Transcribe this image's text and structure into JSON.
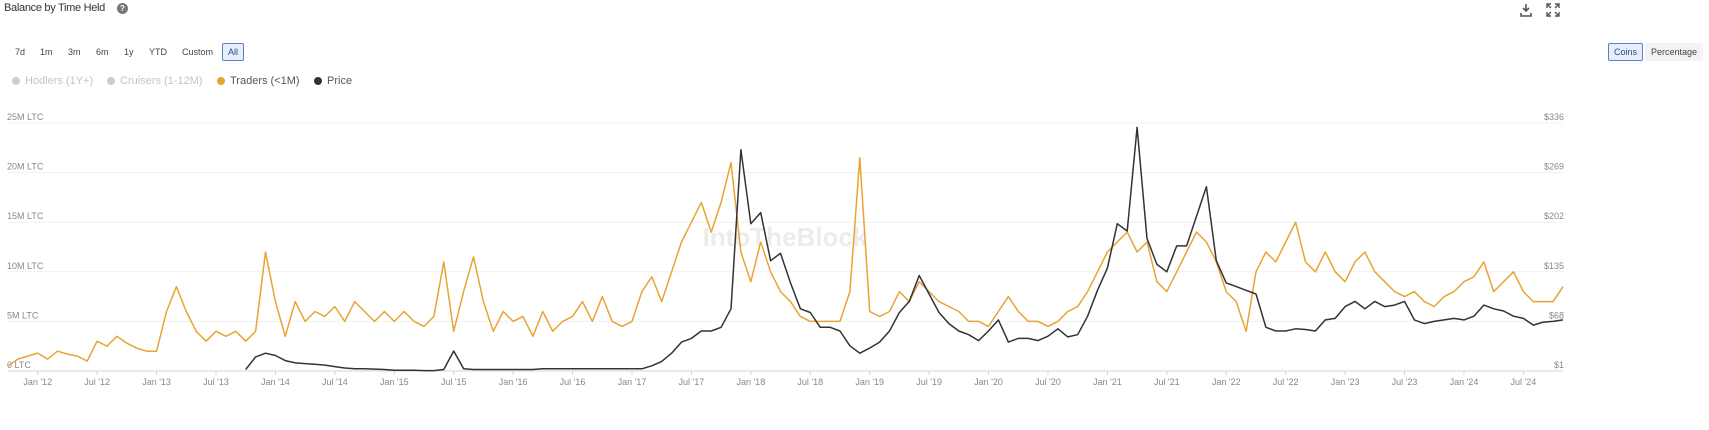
{
  "header": {
    "title": "Balance by Time Held",
    "help": "?"
  },
  "range_buttons": [
    "7d",
    "1m",
    "3m",
    "6m",
    "1y",
    "YTD",
    "Custom",
    "All"
  ],
  "active_range": "All",
  "unit_buttons": [
    "Coins",
    "Percentage"
  ],
  "active_unit": "Coins",
  "watermark": "IntoTheBlock",
  "chart_data": {
    "type": "line",
    "legend_hidden": [
      {
        "name": "Hodlers (1Y+)",
        "color": "#cccccc"
      },
      {
        "name": "Cruisers (1-12M)",
        "color": "#cccccc"
      }
    ],
    "x": [
      "2011-10",
      "2011-11",
      "2011-12",
      "2012-01",
      "2012-02",
      "2012-03",
      "2012-04",
      "2012-05",
      "2012-06",
      "2012-07",
      "2012-08",
      "2012-09",
      "2012-10",
      "2012-11",
      "2012-12",
      "2013-01",
      "2013-02",
      "2013-03",
      "2013-04",
      "2013-05",
      "2013-06",
      "2013-07",
      "2013-08",
      "2013-09",
      "2013-10",
      "2013-11",
      "2013-12",
      "2014-01",
      "2014-02",
      "2014-03",
      "2014-04",
      "2014-05",
      "2014-06",
      "2014-07",
      "2014-08",
      "2014-09",
      "2014-10",
      "2014-11",
      "2014-12",
      "2015-01",
      "2015-02",
      "2015-03",
      "2015-04",
      "2015-05",
      "2015-06",
      "2015-07",
      "2015-08",
      "2015-09",
      "2015-10",
      "2015-11",
      "2015-12",
      "2016-01",
      "2016-02",
      "2016-03",
      "2016-04",
      "2016-05",
      "2016-06",
      "2016-07",
      "2016-08",
      "2016-09",
      "2016-10",
      "2016-11",
      "2016-12",
      "2017-01",
      "2017-02",
      "2017-03",
      "2017-04",
      "2017-05",
      "2017-06",
      "2017-07",
      "2017-08",
      "2017-09",
      "2017-10",
      "2017-11",
      "2017-12",
      "2018-01",
      "2018-02",
      "2018-03",
      "2018-04",
      "2018-05",
      "2018-06",
      "2018-07",
      "2018-08",
      "2018-09",
      "2018-10",
      "2018-11",
      "2018-12",
      "2019-01",
      "2019-02",
      "2019-03",
      "2019-04",
      "2019-05",
      "2019-06",
      "2019-07",
      "2019-08",
      "2019-09",
      "2019-10",
      "2019-11",
      "2019-12",
      "2020-01",
      "2020-02",
      "2020-03",
      "2020-04",
      "2020-05",
      "2020-06",
      "2020-07",
      "2020-08",
      "2020-09",
      "2020-10",
      "2020-11",
      "2020-12",
      "2021-01",
      "2021-02",
      "2021-03",
      "2021-04",
      "2021-05",
      "2021-06",
      "2021-07",
      "2021-08",
      "2021-09",
      "2021-10",
      "2021-11",
      "2021-12",
      "2022-01",
      "2022-02",
      "2022-03",
      "2022-04",
      "2022-05",
      "2022-06",
      "2022-07",
      "2022-08",
      "2022-09",
      "2022-10",
      "2022-11",
      "2022-12",
      "2023-01",
      "2023-02",
      "2023-03",
      "2023-04",
      "2023-05",
      "2023-06",
      "2023-07",
      "2023-08",
      "2023-09",
      "2023-10",
      "2023-11",
      "2023-12",
      "2024-01",
      "2024-02",
      "2024-03",
      "2024-04",
      "2024-05",
      "2024-06",
      "2024-07",
      "2024-08",
      "2024-09",
      "2024-10",
      "2024-11"
    ],
    "series": [
      {
        "name": "Traders (<1M)",
        "color": "#e8a433",
        "axis": "y",
        "values": [
          500000,
          1200000,
          1500000,
          1800000,
          1200000,
          2000000,
          1700000,
          1500000,
          1000000,
          3000000,
          2500000,
          3500000,
          2800000,
          2300000,
          2000000,
          2000000,
          6000000,
          8500000,
          6000000,
          4000000,
          3000000,
          4000000,
          3500000,
          4000000,
          3000000,
          4000000,
          12000000,
          7000000,
          3500000,
          7000000,
          5000000,
          6000000,
          5500000,
          6500000,
          5000000,
          7000000,
          6000000,
          5000000,
          6000000,
          5000000,
          6000000,
          5000000,
          4500000,
          5500000,
          11000000,
          4000000,
          8000000,
          11500000,
          7000000,
          4000000,
          6000000,
          5000000,
          5500000,
          3500000,
          6000000,
          4000000,
          5000000,
          5500000,
          7000000,
          5000000,
          7500000,
          5000000,
          4500000,
          5000000,
          8000000,
          9500000,
          7000000,
          10000000,
          13000000,
          15000000,
          17000000,
          14000000,
          17000000,
          21000000,
          12000000,
          9000000,
          13000000,
          10000000,
          8000000,
          7000000,
          5500000,
          5000000,
          5000000,
          5000000,
          5000000,
          8000000,
          21500000,
          6000000,
          5500000,
          6000000,
          8000000,
          7000000,
          9000000,
          8000000,
          7000000,
          6500000,
          6000000,
          5000000,
          5000000,
          4500000,
          6000000,
          7500000,
          6000000,
          5000000,
          5000000,
          4500000,
          5000000,
          6000000,
          6500000,
          8000000,
          10000000,
          12000000,
          13000000,
          14000000,
          12000000,
          13000000,
          9000000,
          8000000,
          10000000,
          12000000,
          14000000,
          13000000,
          11000000,
          8000000,
          7000000,
          4000000,
          10000000,
          12000000,
          11000000,
          13000000,
          15000000,
          11000000,
          10000000,
          12000000,
          10000000,
          9000000,
          11000000,
          12000000,
          10000000,
          9000000,
          8000000,
          7500000,
          8000000,
          7000000,
          6500000,
          7500000,
          8000000,
          9000000,
          9500000,
          11000000,
          8000000,
          9000000,
          10000000,
          8000000,
          7000000,
          7000000,
          7000000,
          8500000
        ]
      },
      {
        "name": "Price",
        "color": "#333333",
        "axis": "y2",
        "values": [
          null,
          null,
          null,
          null,
          null,
          null,
          null,
          null,
          null,
          null,
          null,
          null,
          null,
          null,
          null,
          null,
          null,
          null,
          null,
          null,
          null,
          null,
          null,
          null,
          3,
          20,
          25,
          22,
          15,
          12,
          11,
          10,
          9,
          7,
          5,
          4,
          4,
          3.5,
          3,
          2,
          2,
          2,
          1.5,
          1.5,
          3,
          28,
          4,
          3,
          3,
          3,
          3,
          3,
          3,
          3,
          4,
          4,
          4,
          4,
          4,
          4,
          4,
          4,
          4,
          4,
          4,
          8,
          14,
          25,
          40,
          45,
          55,
          55,
          60,
          85,
          300,
          200,
          215,
          150,
          160,
          120,
          85,
          80,
          60,
          60,
          55,
          35,
          25,
          32,
          40,
          55,
          80,
          95,
          130,
          105,
          80,
          65,
          55,
          50,
          42,
          55,
          70,
          40,
          45,
          45,
          42,
          48,
          58,
          47,
          50,
          75,
          110,
          140,
          200,
          190,
          330,
          180,
          145,
          135,
          170,
          170,
          210,
          250,
          150,
          120,
          115,
          110,
          105,
          60,
          55,
          55,
          58,
          57,
          55,
          70,
          72,
          88,
          95,
          85,
          95,
          88,
          90,
          95,
          70,
          65,
          68,
          70,
          72,
          70,
          75,
          90,
          85,
          82,
          75,
          72,
          63,
          67,
          68,
          70
        ]
      }
    ],
    "xlim": [
      "2011-10",
      "2024-11"
    ],
    "xticks": [
      {
        "value": "2012-01",
        "label": "Jan '12"
      },
      {
        "value": "2012-07",
        "label": "Jul '12"
      },
      {
        "value": "2013-01",
        "label": "Jan '13"
      },
      {
        "value": "2013-07",
        "label": "Jul '13"
      },
      {
        "value": "2014-01",
        "label": "Jan '14"
      },
      {
        "value": "2014-07",
        "label": "Jul '14"
      },
      {
        "value": "2015-01",
        "label": "Jan '15"
      },
      {
        "value": "2015-07",
        "label": "Jul '15"
      },
      {
        "value": "2016-01",
        "label": "Jan '16"
      },
      {
        "value": "2016-07",
        "label": "Jul '16"
      },
      {
        "value": "2017-01",
        "label": "Jan '17"
      },
      {
        "value": "2017-07",
        "label": "Jul '17"
      },
      {
        "value": "2018-01",
        "label": "Jan '18"
      },
      {
        "value": "2018-07",
        "label": "Jul '18"
      },
      {
        "value": "2019-01",
        "label": "Jan '19"
      },
      {
        "value": "2019-07",
        "label": "Jul '19"
      },
      {
        "value": "2020-01",
        "label": "Jan '20"
      },
      {
        "value": "2020-07",
        "label": "Jul '20"
      },
      {
        "value": "2021-01",
        "label": "Jan '21"
      },
      {
        "value": "2021-07",
        "label": "Jul '21"
      },
      {
        "value": "2022-01",
        "label": "Jan '22"
      },
      {
        "value": "2022-07",
        "label": "Jul '22"
      },
      {
        "value": "2023-01",
        "label": "Jan '23"
      },
      {
        "value": "2023-07",
        "label": "Jul '23"
      },
      {
        "value": "2024-01",
        "label": "Jan '24"
      },
      {
        "value": "2024-07",
        "label": "Jul '24"
      }
    ],
    "ylim": [
      0,
      25000000
    ],
    "yticks": [
      {
        "value": 0,
        "label": "0 LTC"
      },
      {
        "value": 5000000,
        "label": "5M LTC"
      },
      {
        "value": 10000000,
        "label": "10M LTC"
      },
      {
        "value": 15000000,
        "label": "15M LTC"
      },
      {
        "value": 20000000,
        "label": "20M LTC"
      },
      {
        "value": 25000000,
        "label": "25M LTC"
      }
    ],
    "y2lim": [
      1,
      336
    ],
    "y2ticks": [
      {
        "value": 1,
        "label": "$1"
      },
      {
        "value": 68,
        "label": "$68"
      },
      {
        "value": 135,
        "label": "$135"
      },
      {
        "value": 202,
        "label": "$202"
      },
      {
        "value": 269,
        "label": "$269"
      },
      {
        "value": 336,
        "label": "$336"
      }
    ],
    "grid": true
  }
}
